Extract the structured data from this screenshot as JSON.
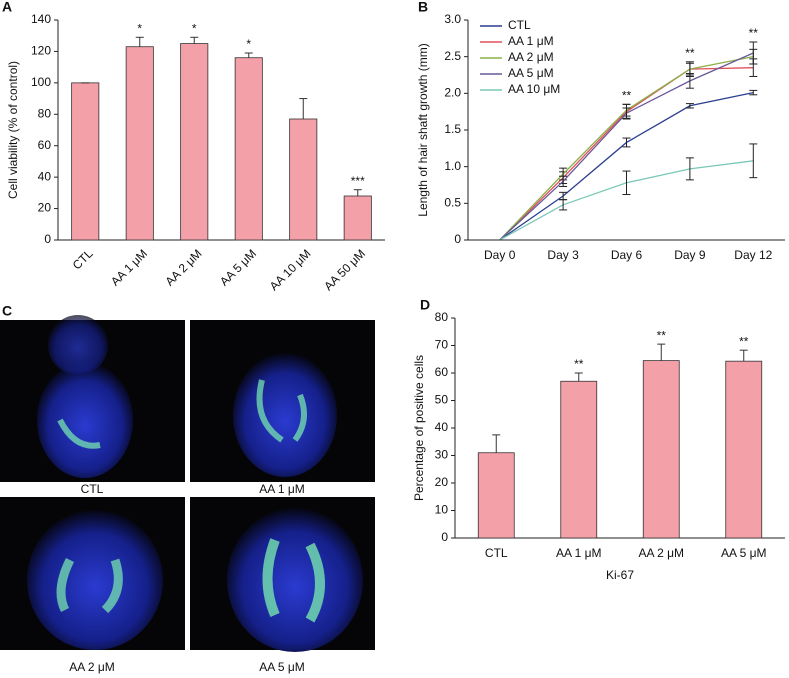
{
  "chart_data": [
    {
      "type": "bar",
      "panel": "A",
      "y_label": "Cell viability (% of control)",
      "categories": [
        "CTL",
        "AA 1 μM",
        "AA 2 μM",
        "AA 5 μM",
        "AA 10 μM",
        "AA 50 μM"
      ],
      "values": [
        100,
        123,
        125,
        116,
        77,
        28
      ],
      "errors": [
        0,
        6,
        4,
        3,
        13,
        4
      ],
      "annotations": [
        null,
        "*",
        "*",
        "*",
        null,
        "***"
      ],
      "color": "#f4a0a8",
      "ylim": [
        0,
        140
      ],
      "yticks": [
        0,
        20,
        40,
        60,
        80,
        100,
        120,
        140
      ]
    },
    {
      "type": "line",
      "panel": "B",
      "y_label": "Length of hair shaft growth (mm)",
      "categories": [
        "Day 0",
        "Day 3",
        "Day 6",
        "Day 9",
        "Day 12"
      ],
      "series": [
        {
          "name": "CTL",
          "color": "#2a3f8f",
          "values": [
            0,
            0.6,
            1.33,
            1.83,
            2.01
          ],
          "errors": [
            0,
            0.05,
            0.06,
            0.03,
            0.03
          ]
        },
        {
          "name": "AA 1 μM",
          "color": "#e0505a",
          "values": [
            0,
            0.85,
            1.75,
            2.33,
            2.35
          ],
          "errors": [
            0,
            0.08,
            0.1,
            0.1,
            0.12
          ]
        },
        {
          "name": "AA 2 μM",
          "color": "#8bb04a",
          "values": [
            0,
            0.9,
            1.77,
            2.33,
            2.5
          ],
          "errors": [
            0,
            0.08,
            0.08,
            0.08,
            0.1
          ]
        },
        {
          "name": "AA 5 μM",
          "color": "#6a5a9a",
          "values": [
            0,
            0.8,
            1.73,
            2.17,
            2.55
          ],
          "errors": [
            0,
            0.07,
            0.07,
            0.1,
            0.15
          ]
        },
        {
          "name": "AA 10 μM",
          "color": "#7cc8b8",
          "values": [
            0,
            0.48,
            0.78,
            0.97,
            1.08
          ],
          "errors": [
            0,
            0.07,
            0.16,
            0.15,
            0.23
          ]
        }
      ],
      "annotations": [
        null,
        null,
        "**",
        "**",
        "**"
      ],
      "legend": "upper left",
      "ylim": [
        0,
        3
      ],
      "yticks": [
        0,
        0.5,
        {
          "value": 1,
          "label": "1.0"
        },
        1.5,
        {
          "value": 2,
          "label": "2.0"
        },
        2.5,
        {
          "value": 3,
          "label": "3.0"
        }
      ]
    },
    {
      "type": "bar",
      "panel": "D",
      "y_label": "Percentage of positive cells",
      "x_label": "Ki-67",
      "categories": [
        "CTL",
        "AA 1 μM",
        "AA 2 μM",
        "AA 5 μM"
      ],
      "values": [
        31,
        57,
        64.5,
        64.3
      ],
      "errors": [
        6.5,
        3,
        6,
        4
      ],
      "annotations": [
        null,
        "**",
        "**",
        "**"
      ],
      "color": "#f4a0a8",
      "ylim": [
        0,
        80
      ],
      "yticks": [
        0,
        10,
        20,
        30,
        40,
        50,
        60,
        70,
        80
      ]
    }
  ],
  "images": {
    "panel": "C",
    "captions": [
      "CTL",
      "AA 1 μM",
      "AA 2 μM",
      "AA 5 μM"
    ]
  }
}
